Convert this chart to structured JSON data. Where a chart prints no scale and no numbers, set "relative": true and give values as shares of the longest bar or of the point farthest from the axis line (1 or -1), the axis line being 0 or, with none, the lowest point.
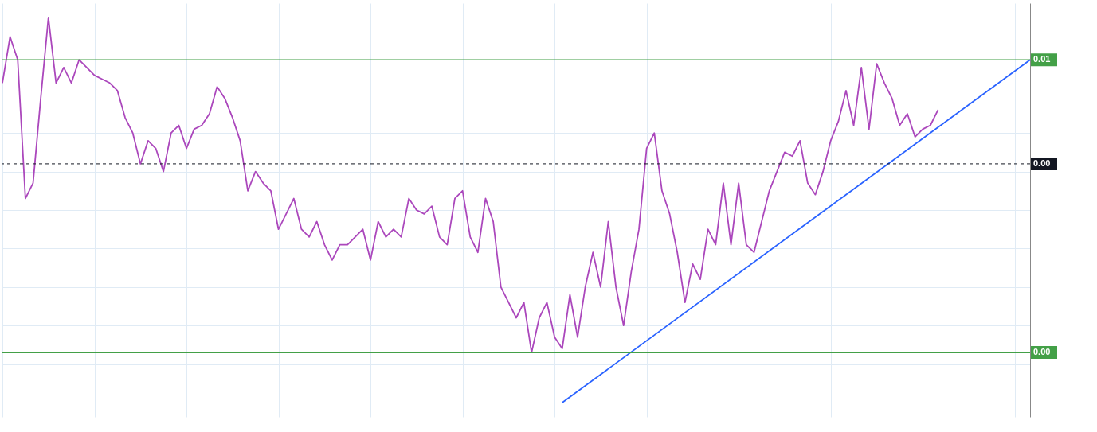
{
  "chart_data": {
    "type": "line",
    "relative": true,
    "grid": true,
    "annotations": [
      "0.01",
      "0.00",
      "0.00"
    ],
    "categories": [
      null,
      null,
      null,
      null,
      null,
      null,
      null,
      null,
      null,
      null,
      null,
      null,
      null,
      null,
      null,
      null,
      null,
      null,
      null,
      null,
      null,
      null,
      null,
      null,
      null,
      null,
      null,
      null,
      null,
      null,
      null,
      null,
      null,
      null,
      null,
      null,
      null,
      null,
      null,
      null,
      null,
      null,
      null,
      null,
      null,
      null,
      null,
      null,
      null,
      null,
      null,
      null,
      null,
      null,
      null,
      null,
      null,
      null,
      null,
      null,
      null,
      null,
      null,
      null,
      null,
      null,
      null,
      null,
      null,
      null,
      null,
      null,
      null,
      null,
      null,
      null,
      null,
      null,
      null,
      null,
      null,
      null,
      null,
      null,
      null,
      null,
      null,
      null,
      null,
      null,
      null,
      null,
      null,
      null,
      null,
      null,
      null,
      null,
      null,
      null,
      null,
      null,
      null,
      null,
      null,
      null,
      null,
      null,
      null,
      null,
      null,
      null,
      null,
      null,
      null,
      null,
      null,
      null,
      null,
      null,
      null,
      null,
      null,
      null,
      null,
      null,
      null,
      null,
      null,
      null,
      null,
      null,
      null,
      null,
      null
    ],
    "series": [
      {
        "color": "#ab47bc",
        "values": [
          0.83,
          0.95,
          0.89,
          0.53,
          0.57,
          0.79,
          1.0,
          0.83,
          0.87,
          0.83,
          0.89,
          0.87,
          0.85,
          0.84,
          0.83,
          0.81,
          0.74,
          0.7,
          0.62,
          0.68,
          0.66,
          0.6,
          0.7,
          0.72,
          0.66,
          0.71,
          0.72,
          0.75,
          0.82,
          0.79,
          0.74,
          0.68,
          0.55,
          0.6,
          0.57,
          0.55,
          0.45,
          0.49,
          0.53,
          0.45,
          0.43,
          0.47,
          0.41,
          0.37,
          0.41,
          0.41,
          0.43,
          0.45,
          0.37,
          0.47,
          0.43,
          0.45,
          0.43,
          0.53,
          0.5,
          0.49,
          0.51,
          0.43,
          0.41,
          0.53,
          0.55,
          0.43,
          0.39,
          0.53,
          0.47,
          0.3,
          0.26,
          0.22,
          0.26,
          0.13,
          0.22,
          0.26,
          0.17,
          0.14,
          0.28,
          0.17,
          0.3,
          0.39,
          0.3,
          0.47,
          0.3,
          0.2,
          0.34,
          0.45,
          0.66,
          0.7,
          0.55,
          0.49,
          0.39,
          0.26,
          0.36,
          0.32,
          0.45,
          0.41,
          0.57,
          0.41,
          0.57,
          0.41,
          0.39,
          0.47,
          0.55,
          0.6,
          0.65,
          0.64,
          0.68,
          0.57,
          0.54,
          0.6,
          0.68,
          0.73,
          0.81,
          0.72,
          0.87,
          0.71,
          0.88,
          0.83,
          0.79,
          0.72,
          0.75,
          0.69,
          0.71,
          0.72,
          0.76,
          null,
          null,
          null,
          null,
          null,
          null,
          null,
          null,
          null,
          null,
          null,
          null
        ]
      },
      {
        "color": "#2962ff",
        "values": [
          null,
          null,
          null,
          null,
          null,
          null,
          null,
          null,
          null,
          null,
          null,
          null,
          null,
          null,
          null,
          null,
          null,
          null,
          null,
          null,
          null,
          null,
          null,
          null,
          null,
          null,
          null,
          null,
          null,
          null,
          null,
          null,
          null,
          null,
          null,
          null,
          null,
          null,
          null,
          null,
          null,
          null,
          null,
          null,
          null,
          null,
          null,
          null,
          null,
          null,
          null,
          null,
          null,
          null,
          null,
          null,
          null,
          null,
          null,
          null,
          null,
          null,
          null,
          null,
          null,
          null,
          null,
          null,
          null,
          null,
          null,
          null,
          null,
          0,
          null,
          null,
          null,
          null,
          null,
          null,
          null,
          null,
          null,
          null,
          null,
          null,
          null,
          null,
          null,
          null,
          null,
          null,
          null,
          null,
          null,
          null,
          null,
          null,
          null,
          null,
          null,
          null,
          null,
          null,
          null,
          null,
          null,
          null,
          null,
          null,
          null,
          null,
          null,
          null,
          null,
          null,
          null,
          null,
          null,
          null,
          null,
          null,
          null,
          null,
          null,
          null,
          null,
          null,
          null,
          null,
          null,
          null,
          null,
          null,
          0.89
        ]
      }
    ],
    "ref_lines": [
      {
        "axis": "y",
        "value": 0.89,
        "color": "#43a047"
      },
      {
        "axis": "y",
        "value": 0.13,
        "color": "#43a047"
      },
      {
        "axis": "y",
        "value": 0.62,
        "color": "#131722",
        "line_style": "dashed"
      }
    ]
  }
}
